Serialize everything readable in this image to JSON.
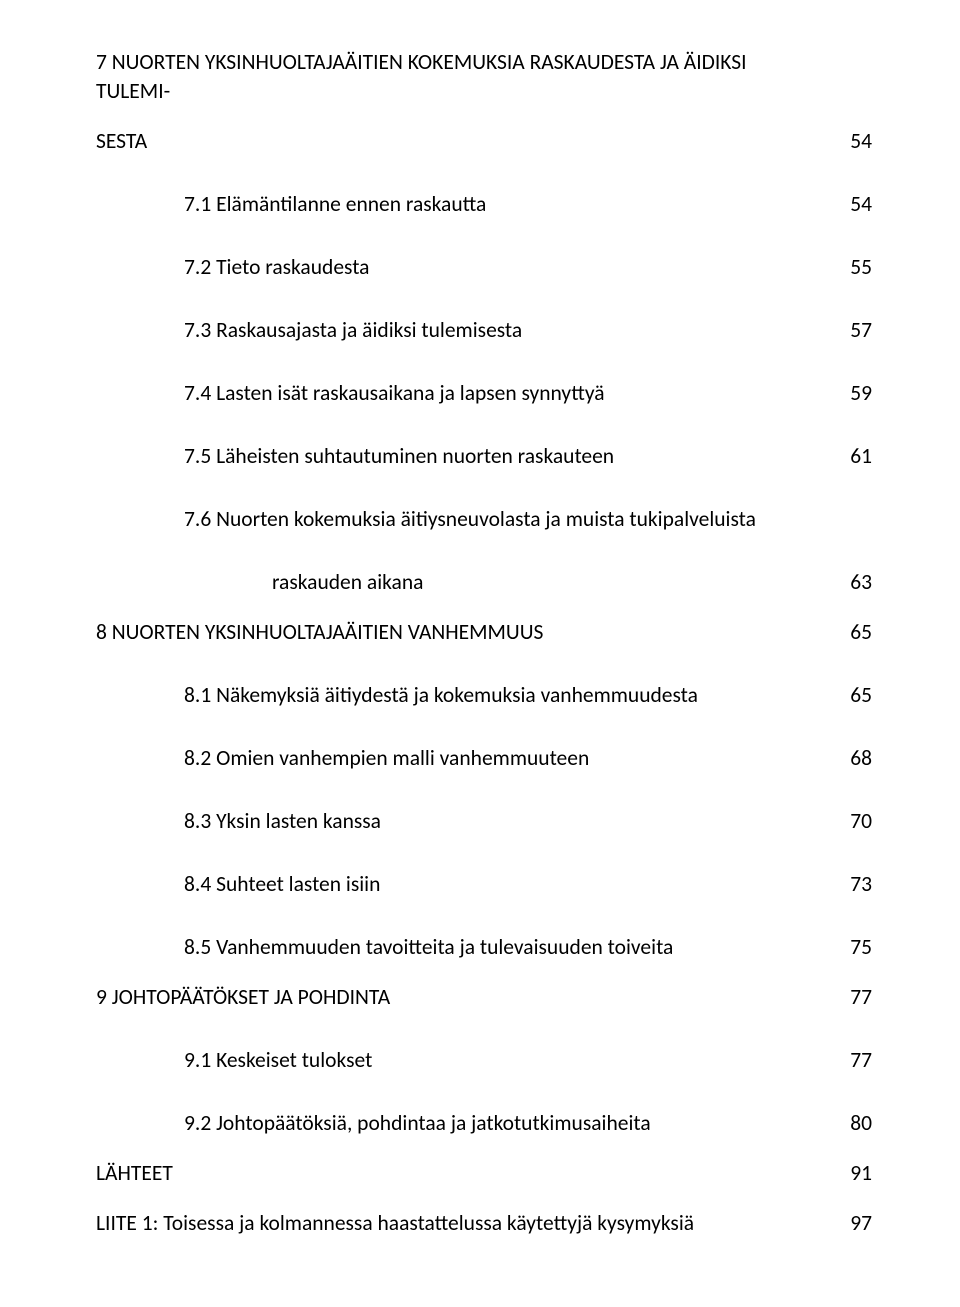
{
  "font_color": "#000000",
  "background_color": "#ffffff",
  "toc": [
    {
      "level": 0,
      "label": "7 NUORTEN YKSINHUOLTAJAÄITIEN KOKEMUKSIA RASKAUDESTA JA ÄIDIKSI TULEMI-",
      "page": ""
    },
    {
      "level": 0,
      "label": "SESTA",
      "page": "54",
      "spaced": true
    },
    {
      "level": 1,
      "label": "7.1 Elämäntilanne ennen raskautta",
      "page": "54",
      "spaced": true
    },
    {
      "level": 1,
      "label": "7.2 Tieto raskaudesta",
      "page": "55",
      "spaced": true
    },
    {
      "level": 1,
      "label": "7.3 Raskausajasta ja äidiksi tulemisesta",
      "page": "57",
      "spaced": true
    },
    {
      "level": 1,
      "label": "7.4 Lasten isät raskausaikana ja lapsen synnyttyä",
      "page": "59",
      "spaced": true
    },
    {
      "level": 1,
      "label": "7.5 Läheisten suhtautuminen nuorten raskauteen",
      "page": "61",
      "spaced": true
    },
    {
      "level": 1,
      "label": "7.6 Nuorten kokemuksia äitiysneuvolasta ja muista tukipalveluista",
      "page": "",
      "spaced": true
    },
    {
      "level": 2,
      "label": "raskauden aikana",
      "page": "63"
    },
    {
      "level": 0,
      "label": "8 NUORTEN YKSINHUOLTAJAÄITIEN VANHEMMUUS",
      "page": "65",
      "spaced": true
    },
    {
      "level": 1,
      "label": "8.1 Näkemyksiä äitiydestä ja kokemuksia vanhemmuudesta",
      "page": "65",
      "spaced": true
    },
    {
      "level": 1,
      "label": "8.2 Omien vanhempien malli vanhemmuuteen",
      "page": "68",
      "spaced": true
    },
    {
      "level": 1,
      "label": "8.3 Yksin lasten kanssa",
      "page": "70",
      "spaced": true
    },
    {
      "level": 1,
      "label": "8.4 Suhteet lasten isiin",
      "page": "73",
      "spaced": true
    },
    {
      "level": 1,
      "label": "8.5 Vanhemmuuden tavoitteita ja tulevaisuuden toiveita",
      "page": "75"
    },
    {
      "level": 0,
      "label": "9 JOHTOPÄÄTÖKSET JA POHDINTA",
      "page": "77",
      "spaced": true
    },
    {
      "level": 1,
      "label": "9.1 Keskeiset tulokset",
      "page": "77",
      "spaced": true
    },
    {
      "level": 1,
      "label": "9.2 Johtopäätöksiä, pohdintaa ja jatkotutkimusaiheita",
      "page": "80"
    },
    {
      "level": 0,
      "label": "LÄHTEET",
      "page": "91"
    },
    {
      "level": 0,
      "label": "LIITE 1: Toisessa ja kolmannessa haastattelussa käytettyjä kysymyksiä",
      "page": "97"
    }
  ]
}
